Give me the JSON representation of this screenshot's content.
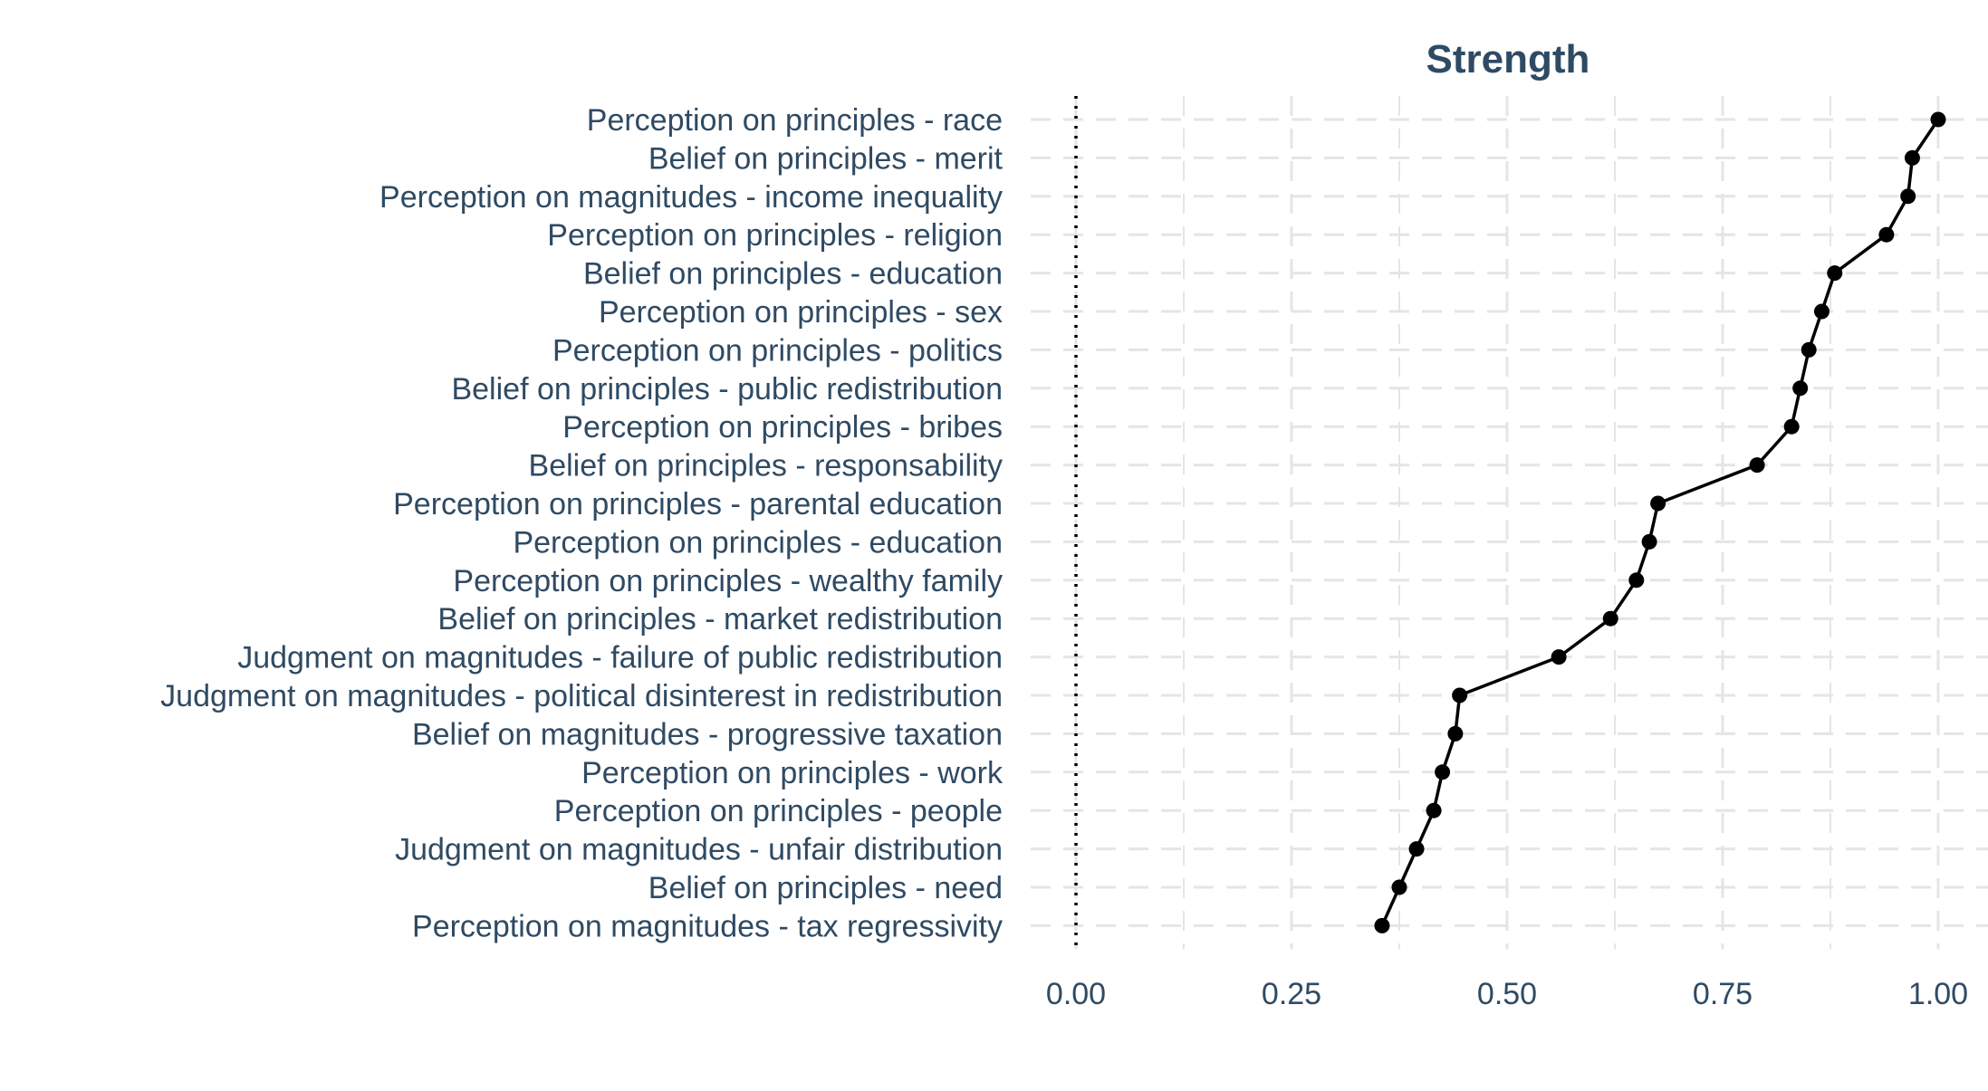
{
  "chart_data": {
    "type": "line",
    "title": "Strength",
    "xlabel": "",
    "ylabel": "",
    "xlim": [
      0,
      1.0
    ],
    "x_ticks": [
      "0.00",
      "0.25",
      "0.50",
      "0.75",
      "1.00"
    ],
    "x_tick_values": [
      0,
      0.25,
      0.5,
      0.75,
      1.0
    ],
    "reference_line": {
      "x": 0,
      "style": "dotted"
    },
    "grid": true,
    "categories": [
      "Perception on principles - race",
      "Belief on principles - merit",
      "Perception on magnitudes - income inequality",
      "Perception on principles - religion",
      "Belief on principles - education",
      "Perception on principles - sex",
      "Perception on principles - politics",
      "Belief on principles - public redistribution",
      "Perception on principles - bribes",
      "Belief on principles - responsability",
      "Perception on principles - parental education",
      "Perception on principles - education",
      "Perception on principles - wealthy family",
      "Belief on principles - market redistribution",
      "Judgment on magnitudes - failure of public redistribution",
      "Judgment on magnitudes - political disinterest in redistribution",
      "Belief on magnitudes - progressive taxation",
      "Perception on principles - work",
      "Perception on principles - people",
      "Judgment on magnitudes - unfair distribution",
      "Belief on principles - need",
      "Perception on magnitudes - tax regressivity"
    ],
    "values": [
      1.0,
      0.97,
      0.965,
      0.94,
      0.88,
      0.865,
      0.85,
      0.84,
      0.83,
      0.79,
      0.675,
      0.665,
      0.65,
      0.62,
      0.56,
      0.445,
      0.44,
      0.425,
      0.415,
      0.395,
      0.375,
      0.355
    ],
    "colors": {
      "line": "#000000",
      "points": "#000000",
      "grid": "#e5e5e5",
      "text": "#2f4a63"
    }
  }
}
